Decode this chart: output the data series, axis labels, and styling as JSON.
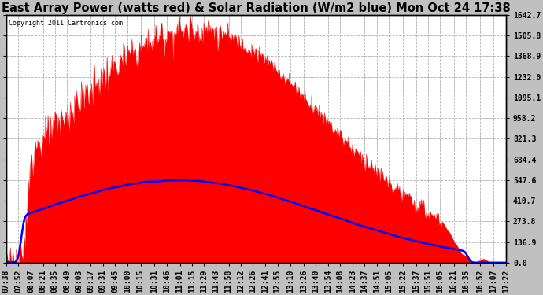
{
  "title": "East Array Power (watts red) & Solar Radiation (W/m2 blue) Mon Oct 24 17:38",
  "copyright": "Copyright 2011 Cartronics.com",
  "background_color": "#c0c0c0",
  "plot_bg_color": "#ffffff",
  "grid_color": "#b0b0b0",
  "yticks": [
    0.0,
    136.9,
    273.8,
    410.7,
    547.6,
    684.4,
    821.3,
    958.2,
    1095.1,
    1232.0,
    1368.9,
    1505.8,
    1642.7
  ],
  "ymax": 1642.7,
  "ymin": 0.0,
  "power_color": "#ff0000",
  "radiation_color": "#0000ff",
  "title_fontsize": 10.5,
  "tick_fontsize": 7,
  "label_times": [
    "07:38",
    "07:52",
    "08:07",
    "08:21",
    "08:35",
    "08:49",
    "09:03",
    "09:17",
    "09:31",
    "09:45",
    "10:00",
    "10:15",
    "10:31",
    "10:46",
    "11:01",
    "11:15",
    "11:29",
    "11:43",
    "11:58",
    "12:12",
    "12:26",
    "12:41",
    "12:55",
    "13:10",
    "13:26",
    "13:40",
    "13:54",
    "14:08",
    "14:23",
    "14:37",
    "14:51",
    "15:05",
    "15:22",
    "15:37",
    "15:51",
    "16:05",
    "16:21",
    "16:35",
    "16:52",
    "17:07",
    "17:22"
  ]
}
